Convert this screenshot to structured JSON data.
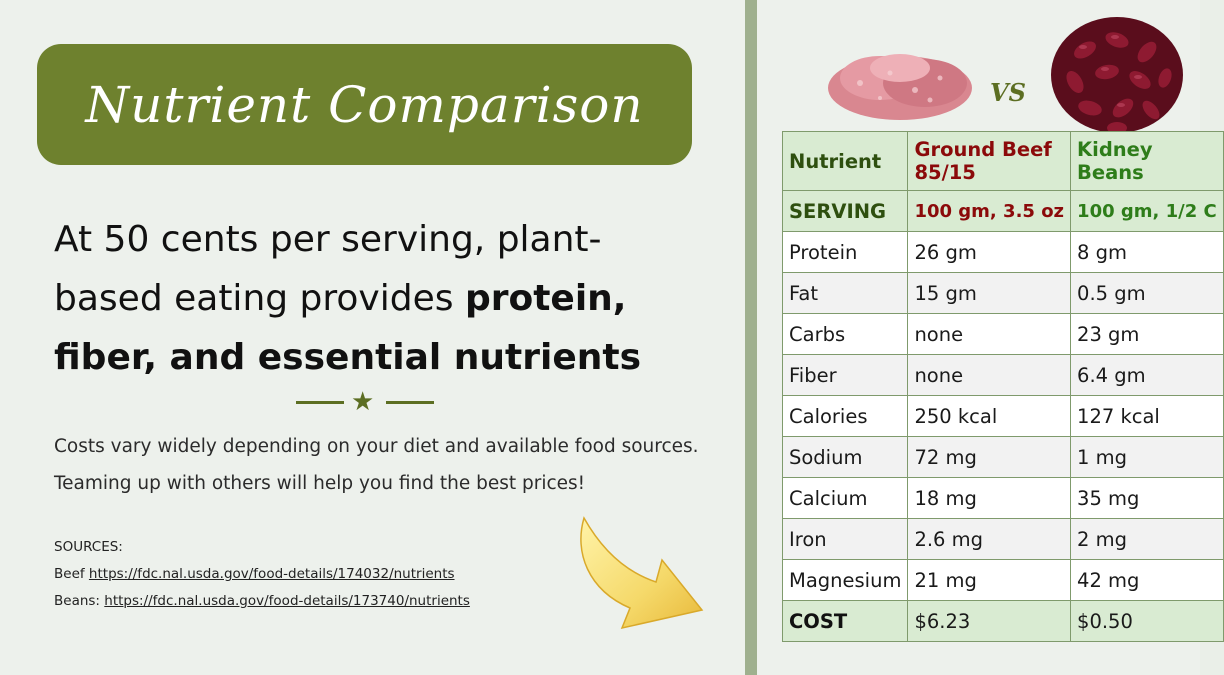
{
  "title": "Nutrient Comparison",
  "headline": {
    "plain": "At 50 cents per serving, plant-based eating provides ",
    "bold": "protein, fiber, and essential nutrients"
  },
  "body": {
    "line1": "Costs vary widely depending on your diet and available food sources.",
    "line2": "Teaming up with others will help you find the best prices!"
  },
  "sources": {
    "heading": "SOURCES:",
    "beef_prefix": "Beef ",
    "beef_url": "https://fdc.nal.usda.gov/food-details/174032/nutrients",
    "beans_prefix": "Beans: ",
    "beans_url": "https://fdc.nal.usda.gov/food-details/173740/nutrients"
  },
  "vs": "VS",
  "colors": {
    "banner": "#6e812e",
    "accent_green": "#5c6e22",
    "beef_red": "#8b0a0a",
    "beans_green": "#2e7d1a",
    "highlight_row": "#d9ebd2"
  },
  "table": {
    "headers": [
      "Nutrient",
      "Ground Beef 85/15",
      "Kidney Beans"
    ],
    "serving": [
      "SERVING",
      "100 gm, 3.5 oz",
      "100 gm, 1/2 C"
    ],
    "rows": [
      [
        "Protein",
        "26 gm",
        "8 gm"
      ],
      [
        "Fat",
        "15 gm",
        "0.5 gm"
      ],
      [
        "Carbs",
        "none",
        "23 gm"
      ],
      [
        "Fiber",
        "none",
        "6.4 gm"
      ],
      [
        "Calories",
        "250 kcal",
        "127 kcal"
      ],
      [
        "Sodium",
        "72 mg",
        "1 mg"
      ],
      [
        "Calcium",
        "18 mg",
        "35 mg"
      ],
      [
        "Iron",
        "2.6 mg",
        "2 mg"
      ],
      [
        "Magnesium",
        "21 mg",
        "42 mg"
      ]
    ],
    "cost": [
      "COST",
      "$6.23",
      "$0.50"
    ]
  }
}
